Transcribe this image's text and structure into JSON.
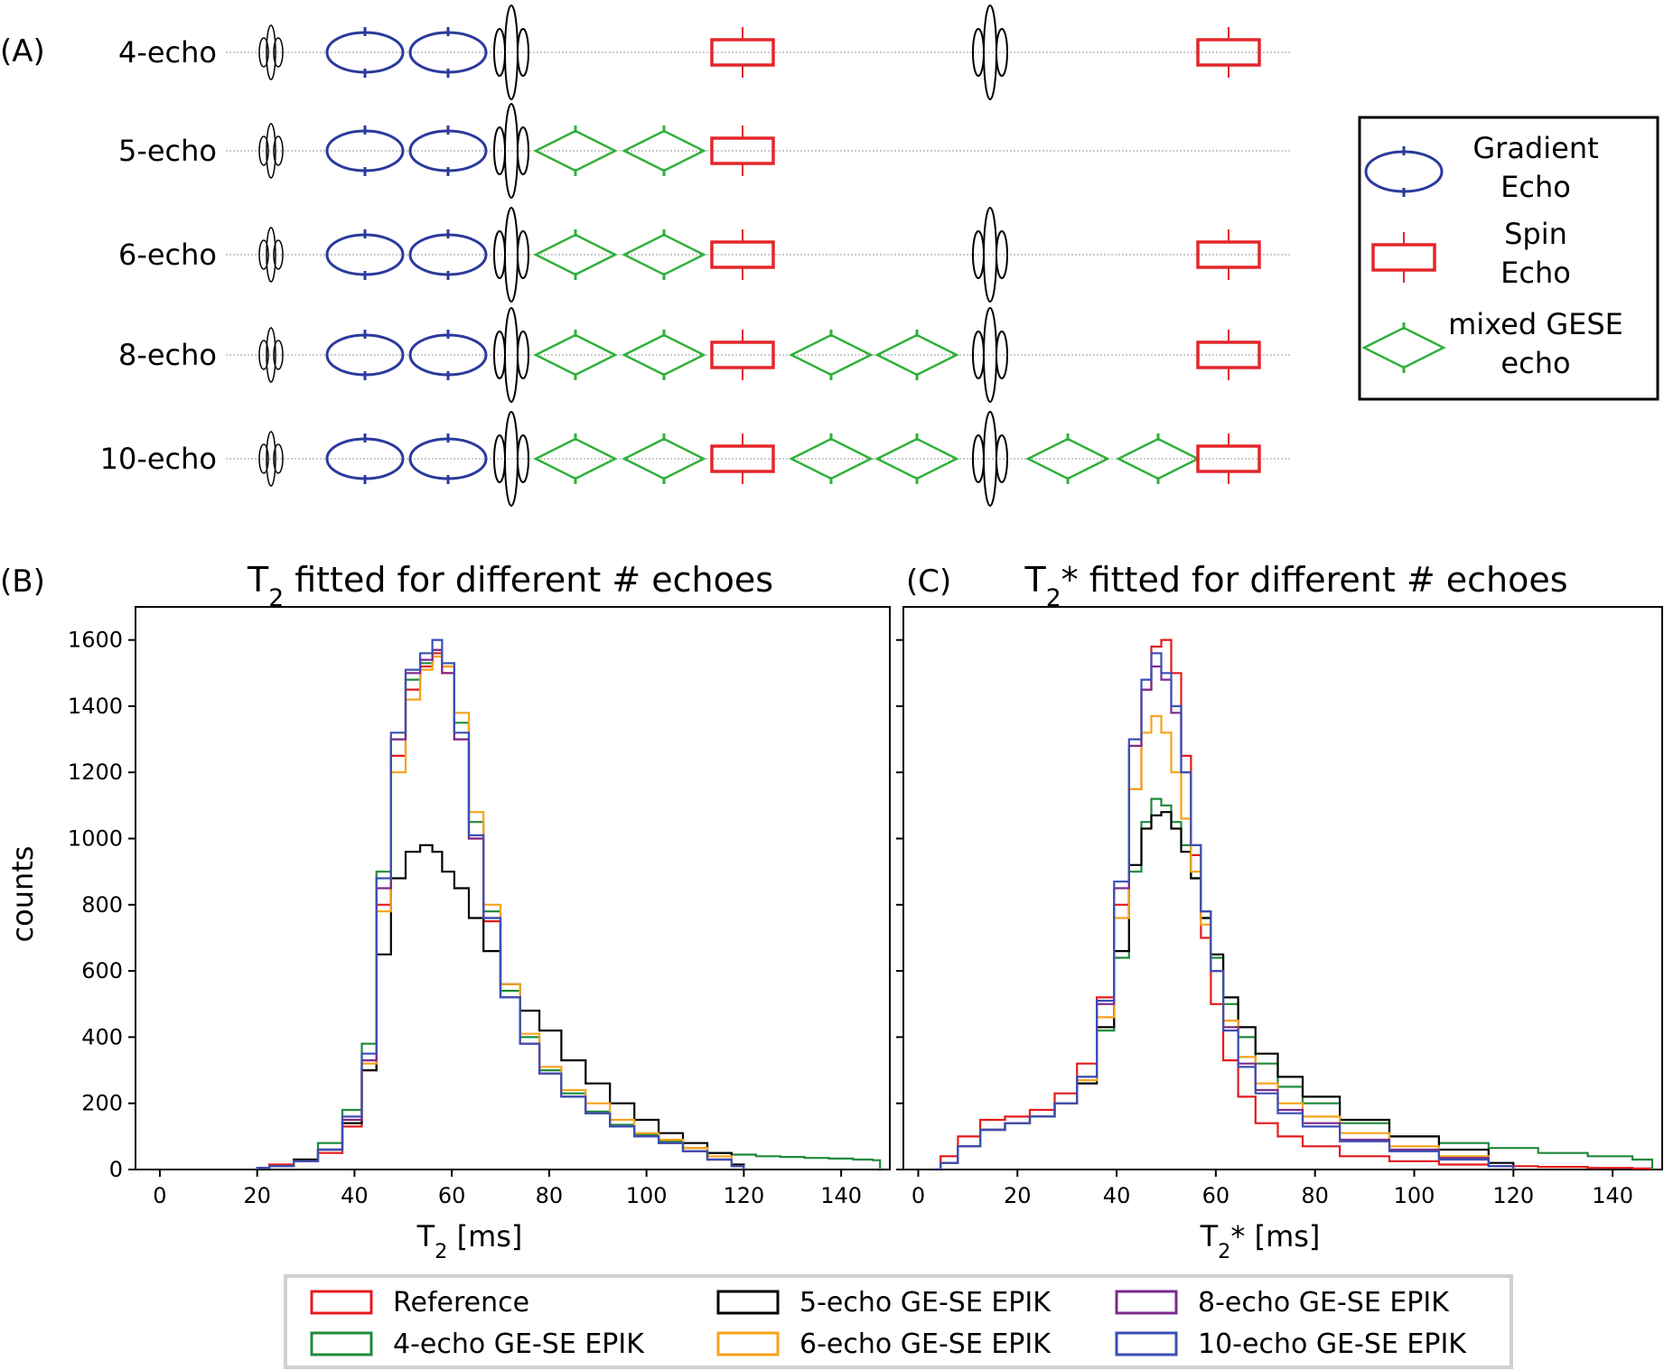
{
  "panel_labels": {
    "a": "(A)",
    "b": "(B)",
    "c": "(C)"
  },
  "colors": {
    "gradient_echo": "#2b3a9c",
    "spin_echo": "#e3262b",
    "mixed_gese": "#2fb03a",
    "rf_pulse": "#000000",
    "Reference": "#e41a1c",
    "4-echo GE-SE EPIK": "#1f8a3a",
    "5-echo GE-SE EPIK": "#000000",
    "6-echo GE-SE EPIK": "#f7a21b",
    "8-echo GE-SE EPIK": "#7b2a8c",
    "10-echo GE-SE EPIK": "#3a4fb3"
  },
  "sequence_diagram": {
    "rows": [
      {
        "label": "4-echo",
        "elements": [
          "small-rf",
          "ge",
          "ge",
          "big-rf",
          "se",
          "big-rf",
          "se"
        ]
      },
      {
        "label": "5-echo",
        "elements": [
          "small-rf",
          "ge",
          "ge",
          "big-rf",
          "mixed",
          "mixed",
          "se"
        ]
      },
      {
        "label": "6-echo",
        "elements": [
          "small-rf",
          "ge",
          "ge",
          "big-rf",
          "mixed",
          "mixed",
          "se",
          "big-rf",
          "se"
        ]
      },
      {
        "label": "8-echo",
        "elements": [
          "small-rf",
          "ge",
          "ge",
          "big-rf",
          "mixed",
          "mixed",
          "se",
          "mixed",
          "mixed",
          "big-rf",
          "se"
        ]
      },
      {
        "label": "10-echo",
        "elements": [
          "small-rf",
          "ge",
          "ge",
          "big-rf",
          "mixed",
          "mixed",
          "se",
          "mixed",
          "mixed",
          "big-rf",
          "mixed",
          "mixed",
          "se"
        ]
      }
    ],
    "legend": [
      {
        "symbol": "ge",
        "label_line1": "Gradient",
        "label_line2": "Echo"
      },
      {
        "symbol": "se",
        "label_line1": "Spin",
        "label_line2": "Echo"
      },
      {
        "symbol": "mixed",
        "label_line1": "mixed GESE",
        "label_line2": "echo"
      }
    ]
  },
  "chart_data": [
    {
      "type": "line",
      "panel": "B",
      "title": "T₂ fitted for different # echoes",
      "xlabel": "T₂ [ms]",
      "ylabel": "counts",
      "xlim": [
        -5,
        150
      ],
      "ylim": [
        0,
        1700
      ],
      "xticks": [
        0,
        20,
        40,
        60,
        80,
        100,
        120,
        140
      ],
      "yticks": [
        0,
        200,
        400,
        600,
        800,
        1000,
        1200,
        1400,
        1600
      ],
      "grid": false,
      "series": [
        {
          "name": "Reference",
          "x": [
            20,
            25,
            30,
            35,
            40,
            43,
            46,
            49,
            52,
            55,
            57,
            59,
            62,
            65,
            68,
            72,
            76,
            80,
            85,
            90,
            95,
            100,
            105,
            110,
            115,
            120
          ],
          "values": [
            5,
            15,
            25,
            50,
            130,
            300,
            800,
            1250,
            1450,
            1520,
            1560,
            1500,
            1300,
            1000,
            750,
            520,
            380,
            290,
            220,
            170,
            130,
            100,
            80,
            55,
            30,
            10
          ]
        },
        {
          "name": "4-echo GE-SE EPIK",
          "x": [
            20,
            25,
            30,
            35,
            40,
            43,
            46,
            49,
            52,
            55,
            57,
            59,
            62,
            65,
            68,
            72,
            76,
            80,
            85,
            90,
            95,
            100,
            105,
            110,
            115,
            120,
            125,
            130,
            135,
            140,
            145,
            148
          ],
          "values": [
            5,
            10,
            30,
            80,
            180,
            380,
            900,
            1300,
            1480,
            1530,
            1570,
            1520,
            1350,
            1050,
            780,
            540,
            400,
            300,
            230,
            175,
            135,
            105,
            85,
            65,
            50,
            45,
            40,
            38,
            35,
            33,
            30,
            28
          ]
        },
        {
          "name": "5-echo GE-SE EPIK",
          "x": [
            20,
            25,
            30,
            35,
            40,
            43,
            46,
            49,
            52,
            55,
            57,
            59,
            62,
            65,
            68,
            72,
            76,
            80,
            85,
            90,
            95,
            100,
            105,
            110,
            115,
            120
          ],
          "values": [
            5,
            10,
            30,
            60,
            140,
            300,
            650,
            880,
            960,
            980,
            960,
            900,
            850,
            760,
            660,
            560,
            480,
            420,
            330,
            260,
            200,
            150,
            110,
            80,
            50,
            15
          ]
        },
        {
          "name": "6-echo GE-SE EPIK",
          "x": [
            20,
            25,
            30,
            35,
            40,
            43,
            46,
            49,
            52,
            55,
            57,
            59,
            62,
            65,
            68,
            72,
            76,
            80,
            85,
            90,
            95,
            100,
            105,
            110,
            115,
            120
          ],
          "values": [
            5,
            10,
            25,
            60,
            150,
            320,
            780,
            1200,
            1420,
            1510,
            1550,
            1520,
            1380,
            1080,
            800,
            560,
            410,
            310,
            240,
            200,
            150,
            110,
            90,
            65,
            40,
            10
          ]
        },
        {
          "name": "8-echo GE-SE EPIK",
          "x": [
            20,
            25,
            30,
            35,
            40,
            43,
            46,
            49,
            52,
            55,
            57,
            59,
            62,
            65,
            68,
            72,
            76,
            80,
            85,
            90,
            95,
            100,
            105,
            110,
            115,
            120
          ],
          "values": [
            5,
            10,
            25,
            60,
            150,
            330,
            850,
            1300,
            1500,
            1540,
            1570,
            1500,
            1300,
            1000,
            760,
            520,
            380,
            290,
            220,
            170,
            130,
            100,
            80,
            55,
            30,
            10
          ]
        },
        {
          "name": "10-echo GE-SE EPIK",
          "x": [
            20,
            25,
            30,
            35,
            40,
            43,
            46,
            49,
            52,
            55,
            57,
            59,
            62,
            65,
            68,
            72,
            76,
            80,
            85,
            90,
            95,
            100,
            105,
            110,
            115,
            120
          ],
          "values": [
            5,
            10,
            25,
            60,
            160,
            350,
            880,
            1320,
            1510,
            1560,
            1600,
            1530,
            1320,
            1010,
            760,
            520,
            380,
            290,
            220,
            170,
            130,
            100,
            80,
            55,
            30,
            10
          ]
        }
      ]
    },
    {
      "type": "line",
      "panel": "C",
      "title": "T₂* fitted for different # echoes",
      "xlabel": "T₂* [ms]",
      "ylabel": "",
      "xlim": [
        -3,
        150
      ],
      "ylim": [
        0,
        1700
      ],
      "xticks": [
        0,
        20,
        40,
        60,
        80,
        100,
        120,
        140
      ],
      "yticks": [
        0,
        200,
        400,
        600,
        800,
        1000,
        1200,
        1400,
        1600
      ],
      "grid": false,
      "series": [
        {
          "name": "Reference",
          "x": [
            3,
            6,
            10,
            15,
            20,
            25,
            30,
            34,
            38,
            41,
            44,
            46,
            48,
            50,
            52,
            54,
            56,
            58,
            60,
            63,
            66,
            70,
            75,
            80,
            90,
            100,
            110,
            120,
            130,
            140,
            148
          ],
          "values": [
            0,
            40,
            100,
            150,
            160,
            180,
            230,
            320,
            520,
            800,
            1150,
            1450,
            1580,
            1600,
            1500,
            1250,
            950,
            700,
            500,
            330,
            220,
            140,
            100,
            70,
            40,
            25,
            15,
            10,
            8,
            5,
            3
          ]
        },
        {
          "name": "4-echo GE-SE EPIK",
          "x": [
            3,
            6,
            10,
            15,
            20,
            25,
            30,
            34,
            38,
            41,
            44,
            46,
            48,
            50,
            52,
            54,
            56,
            58,
            60,
            63,
            66,
            70,
            75,
            80,
            90,
            100,
            110,
            120,
            130,
            140,
            148
          ],
          "values": [
            0,
            20,
            70,
            120,
            140,
            160,
            200,
            260,
            420,
            640,
            900,
            1050,
            1120,
            1100,
            1050,
            980,
            880,
            760,
            640,
            500,
            400,
            320,
            250,
            200,
            140,
            100,
            80,
            65,
            50,
            40,
            30
          ]
        },
        {
          "name": "5-echo GE-SE EPIK",
          "x": [
            3,
            6,
            10,
            15,
            20,
            25,
            30,
            34,
            38,
            41,
            44,
            46,
            48,
            50,
            52,
            54,
            56,
            58,
            60,
            63,
            66,
            70,
            75,
            80,
            90,
            100,
            110,
            120
          ],
          "values": [
            0,
            20,
            70,
            120,
            140,
            160,
            200,
            260,
            430,
            660,
            920,
            1030,
            1070,
            1080,
            1030,
            960,
            880,
            760,
            650,
            520,
            430,
            350,
            280,
            220,
            150,
            100,
            60,
            20
          ]
        },
        {
          "name": "6-echo GE-SE EPIK",
          "x": [
            3,
            6,
            10,
            15,
            20,
            25,
            30,
            34,
            38,
            41,
            44,
            46,
            48,
            50,
            52,
            54,
            56,
            58,
            60,
            63,
            66,
            70,
            75,
            80,
            90,
            100,
            110,
            120
          ],
          "values": [
            0,
            20,
            70,
            120,
            140,
            160,
            200,
            270,
            460,
            760,
            1150,
            1320,
            1370,
            1320,
            1200,
            1060,
            900,
            740,
            600,
            450,
            340,
            260,
            200,
            160,
            110,
            70,
            40,
            10
          ]
        },
        {
          "name": "8-echo GE-SE EPIK",
          "x": [
            3,
            6,
            10,
            15,
            20,
            25,
            30,
            34,
            38,
            41,
            44,
            46,
            48,
            50,
            52,
            54,
            56,
            58,
            60,
            63,
            66,
            70,
            75,
            80,
            90,
            100,
            110,
            120
          ],
          "values": [
            0,
            20,
            70,
            120,
            140,
            160,
            200,
            280,
            500,
            850,
            1280,
            1450,
            1520,
            1480,
            1380,
            1200,
            980,
            780,
            600,
            430,
            320,
            240,
            180,
            140,
            90,
            60,
            35,
            10
          ]
        },
        {
          "name": "10-echo GE-SE EPIK",
          "x": [
            3,
            6,
            10,
            15,
            20,
            25,
            30,
            34,
            38,
            41,
            44,
            46,
            48,
            50,
            52,
            54,
            56,
            58,
            60,
            63,
            66,
            70,
            75,
            80,
            90,
            100,
            110,
            120
          ],
          "values": [
            0,
            20,
            70,
            120,
            140,
            160,
            200,
            280,
            510,
            870,
            1300,
            1480,
            1560,
            1500,
            1400,
            1200,
            980,
            780,
            600,
            420,
            310,
            230,
            170,
            130,
            85,
            55,
            30,
            10
          ]
        }
      ]
    }
  ],
  "legend_entries": [
    "Reference",
    "5-echo GE-SE EPIK",
    "8-echo GE-SE EPIK",
    "4-echo GE-SE EPIK",
    "6-echo GE-SE EPIK",
    "10-echo GE-SE EPIK"
  ]
}
